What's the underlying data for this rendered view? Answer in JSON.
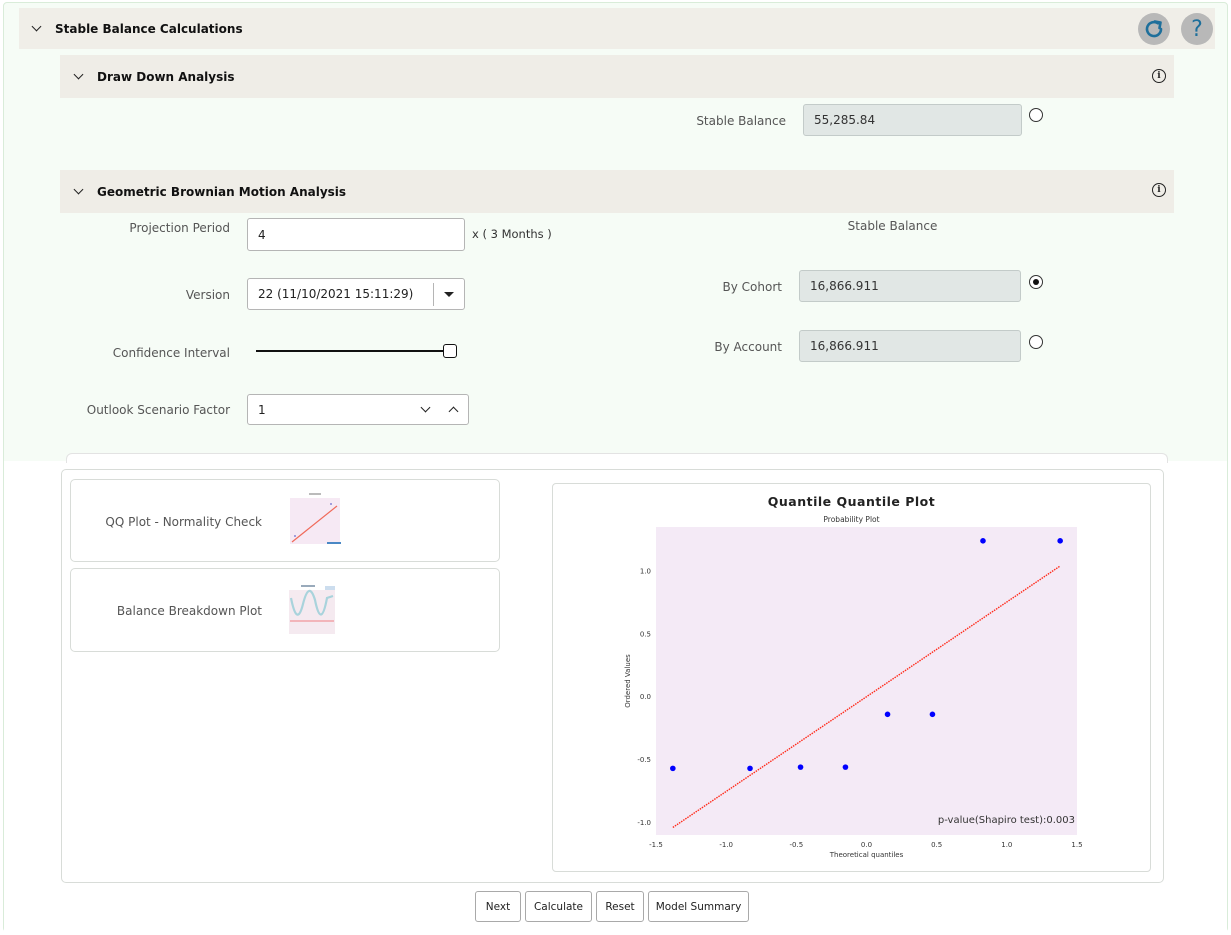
{
  "header": {
    "title": "Stable Balance Calculations"
  },
  "draw_down": {
    "title": "Draw Down Analysis",
    "stable_balance_label": "Stable Balance",
    "stable_balance_value": "55,285.84",
    "selected": false
  },
  "gbm": {
    "title": "Geometric Brownian Motion Analysis",
    "projection_period_label": "Projection Period",
    "projection_period_value": "4",
    "projection_suffix": "x ( 3  Months )",
    "version_label": "Version",
    "version_value": "22 (11/10/2021 15:11:29)",
    "confidence_label": "Confidence Interval",
    "confidence_value": 1.0,
    "outlook_label": "Outlook Scenario Factor",
    "outlook_value": "1",
    "stable_balance_heading": "Stable Balance",
    "by_cohort_label": "By Cohort",
    "by_cohort_value": "16,866.911",
    "by_cohort_selected": true,
    "by_account_label": "By Account",
    "by_account_value": "16,866.911",
    "by_account_selected": false
  },
  "plots": {
    "qq_label": "QQ Plot - Normality Check",
    "breakdown_label": "Balance Breakdown Plot"
  },
  "chart_data": {
    "type": "scatter",
    "title": "Quantile Quantile Plot",
    "subtitle": "Probability Plot",
    "xlabel": "Theoretical quantiles",
    "ylabel": "Ordered Values",
    "xlim": [
      -1.5,
      1.5
    ],
    "ylim": [
      -1.1,
      1.35
    ],
    "xticks": [
      "-1.5",
      "-1.0",
      "-0.5",
      "0.0",
      "0.5",
      "1.0",
      "1.5"
    ],
    "yticks": [
      "-1.0",
      "-0.5",
      "0.0",
      "0.5",
      "1.0"
    ],
    "xtick_values": [
      -1.5,
      -1.0,
      -0.5,
      0.0,
      0.5,
      1.0,
      1.5
    ],
    "ytick_values": [
      -1.0,
      -0.5,
      0.0,
      0.5,
      1.0
    ],
    "points": [
      {
        "x": -1.38,
        "y": -0.57
      },
      {
        "x": -0.83,
        "y": -0.57
      },
      {
        "x": -0.47,
        "y": -0.56
      },
      {
        "x": -0.15,
        "y": -0.56
      },
      {
        "x": 0.15,
        "y": -0.14
      },
      {
        "x": 0.47,
        "y": -0.14
      },
      {
        "x": 0.83,
        "y": 1.24
      },
      {
        "x": 1.38,
        "y": 1.24
      }
    ],
    "fit_line": {
      "x": [
        -1.38,
        1.38
      ],
      "y": [
        -1.04,
        1.04
      ]
    },
    "annotation": "p-value(Shapiro test):0.003",
    "colors": {
      "points": "#0000ff",
      "line": "#ff2a1a",
      "background": "#f4eaf6"
    },
    "grid": false
  },
  "buttons": {
    "next": "Next",
    "calculate": "Calculate",
    "reset": "Reset",
    "model_summary": "Model Summary"
  },
  "icons": {
    "refresh": "refresh-icon",
    "help": "help-icon",
    "info": "info-icon"
  }
}
